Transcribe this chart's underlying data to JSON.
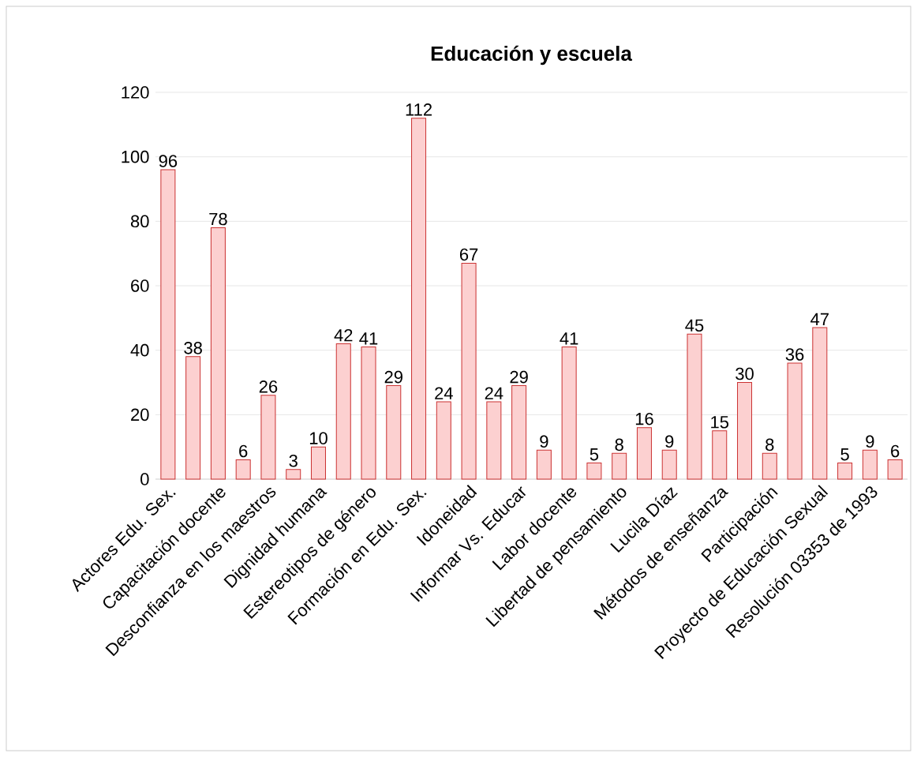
{
  "chart_data": {
    "type": "bar",
    "title": "Educación y escuela",
    "categories": [
      "Actores Edu. Sex.",
      null,
      "Capacitación docente",
      null,
      "Desconfianza en los maestros",
      null,
      "Dignidad humana",
      null,
      "Estereotipos de género",
      null,
      "Formación en Edu. Sex.",
      null,
      "Idoneidad",
      null,
      "Informar Vs. Educar",
      null,
      "Labor docente",
      null,
      "Libertad de pensamiento",
      null,
      "Lucila Díaz",
      null,
      "Métodos de enseñanza",
      null,
      "Participación",
      null,
      "Proyecto de Educación Sexual",
      null,
      "Resolución 03353 de 1993",
      null
    ],
    "values": [
      96,
      38,
      78,
      6,
      26,
      3,
      10,
      42,
      41,
      29,
      112,
      24,
      67,
      24,
      29,
      9,
      41,
      5,
      8,
      16,
      9,
      45,
      15,
      30,
      8,
      36,
      47,
      5,
      9,
      6
    ],
    "color": "#fcd0d0",
    "ylim": [
      0,
      120
    ],
    "yticks": [
      0,
      20,
      40,
      60,
      80,
      100,
      120
    ],
    "grid": "y",
    "data_labels": true
  }
}
